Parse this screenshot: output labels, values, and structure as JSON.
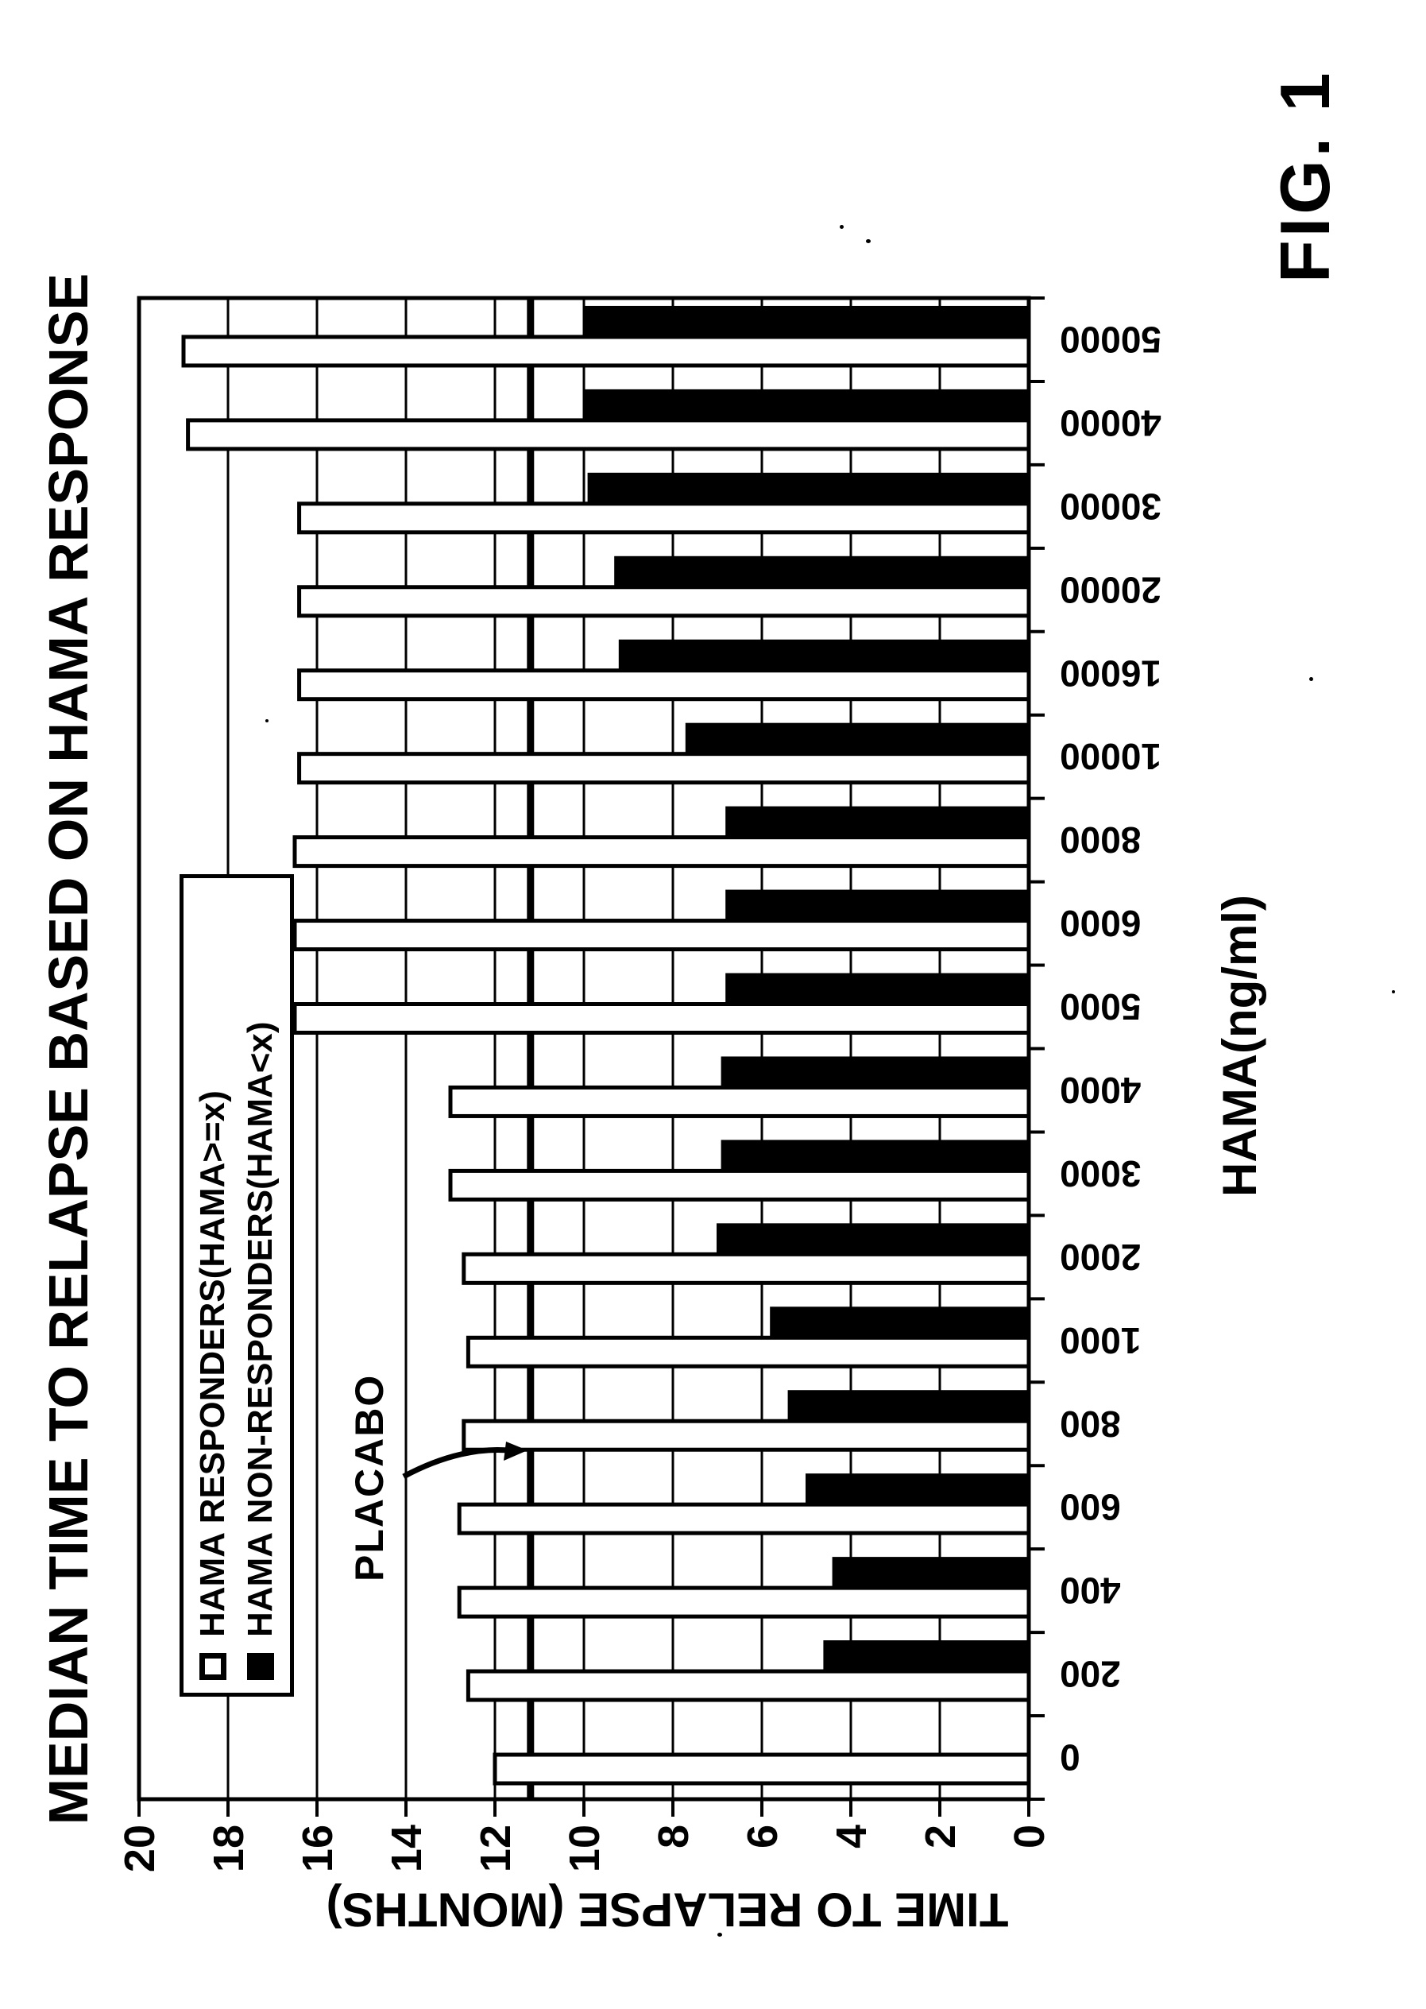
{
  "figure_label": "FIG. 1",
  "page": {
    "background": "#ffffff",
    "ink": "#000000"
  },
  "chart_data": {
    "type": "bar",
    "title": "MEDIAN TIME TO RELAPSE BASED ON HAMA RESPONSE",
    "xlabel": "HAMA(ng/ml)",
    "ylabel": "TIME TO RELAPSE (MONTHS)",
    "ylim": [
      0,
      20
    ],
    "yticks": [
      20,
      18,
      16,
      14,
      12,
      10,
      8,
      6,
      4,
      2,
      0
    ],
    "grid": true,
    "legend_position": "top-left-inside",
    "categories": [
      "0",
      "200",
      "400",
      "600",
      "800",
      "1000",
      "2000",
      "3000",
      "4000",
      "5000",
      "6000",
      "8000",
      "10000",
      "16000",
      "20000",
      "30000",
      "40000",
      "50000"
    ],
    "series": [
      {
        "name": "HAMA RESPONDERS(HAMA>=x)",
        "swatch": "open",
        "values": [
          12.0,
          12.6,
          12.8,
          12.8,
          12.7,
          12.6,
          12.7,
          13.0,
          13.0,
          16.5,
          16.5,
          16.5,
          16.4,
          16.4,
          16.4,
          16.4,
          18.9,
          19.0
        ]
      },
      {
        "name": "HAMA NON-RESPONDERS(HAMA<x)",
        "swatch": "filled",
        "values": [
          null,
          4.6,
          4.4,
          5.0,
          5.4,
          5.8,
          7.0,
          6.9,
          6.9,
          6.8,
          6.8,
          6.8,
          7.7,
          9.2,
          9.3,
          9.9,
          10.0,
          10.0
        ]
      }
    ],
    "reference_line": {
      "label": "PLACABO",
      "value": 11.2
    }
  },
  "legend": {
    "items": [
      {
        "label": "HAMA RESPONDERS(HAMA>=x)",
        "swatch": "open"
      },
      {
        "label": "HAMA NON-RESPONDERS(HAMA<x)",
        "swatch": "filled"
      }
    ]
  },
  "annotation": {
    "placabo_label": "PLACABO"
  }
}
